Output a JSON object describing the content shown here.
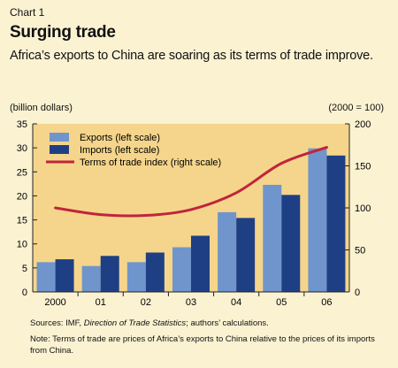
{
  "header": {
    "chart_label": "Chart 1",
    "title": "Surging trade",
    "subtitle": "Africa’s exports to China are soaring as its terms of trade improve."
  },
  "chart_data": {
    "type": "bar",
    "categories": [
      "2000",
      "01",
      "02",
      "03",
      "04",
      "05",
      "06"
    ],
    "series": [
      {
        "name": "Exports (left scale)",
        "values": [
          6.2,
          5.4,
          6.2,
          9.3,
          16.6,
          22.3,
          29.9
        ],
        "color": "#6f95cc",
        "axis": "left"
      },
      {
        "name": "Imports (left scale)",
        "values": [
          6.8,
          7.5,
          8.2,
          11.7,
          15.4,
          20.2,
          28.4
        ],
        "color": "#1f3f85",
        "axis": "left"
      },
      {
        "name": "Terms of trade index (right scale)",
        "type": "line",
        "values": [
          100,
          92,
          91,
          98,
          118,
          153,
          172
        ],
        "color": "#c0243c",
        "axis": "right"
      }
    ],
    "left_axis": {
      "label": "(billion dollars)",
      "ylim": [
        0,
        35
      ],
      "ticks": [
        "0",
        "5",
        "10",
        "15",
        "20",
        "25",
        "30",
        "35"
      ]
    },
    "right_axis": {
      "label": "(2000 = 100)",
      "ylim": [
        0,
        200
      ],
      "ticks": [
        "0",
        "50",
        "100",
        "150",
        "200"
      ]
    },
    "legend_position": "top-left",
    "plot_background": "#f5d58b",
    "grid": false
  },
  "footer": {
    "source_label": "Sources: IMF, ",
    "source_italic": "Direction of Trade Statistics",
    "source_rest": "; authors’ calculations.",
    "note": "Note: Terms of trade are prices of Africa’s exports to China relative to the prices of its imports from China."
  }
}
